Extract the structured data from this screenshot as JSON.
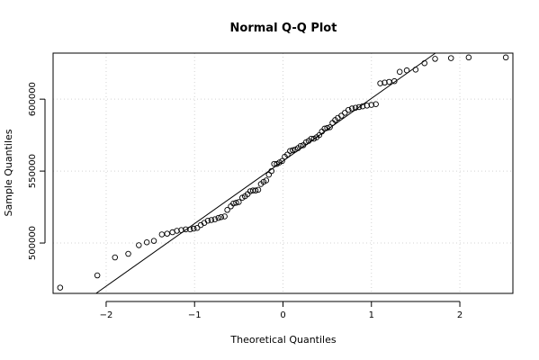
{
  "chart_data": {
    "type": "scatter",
    "title": "Normal Q-Q Plot",
    "xlabel": "Theoretical Quantiles",
    "ylabel": "Sample Quantiles",
    "xlim": [
      -2.6,
      2.6
    ],
    "ylim": [
      465000,
      632000
    ],
    "xticks": [
      -2,
      -1,
      0,
      1,
      2
    ],
    "xtick_labels": [
      "−2",
      "−1",
      "0",
      "1",
      "2"
    ],
    "yticks": [
      500000,
      550000,
      600000
    ],
    "ytick_labels": [
      "500000",
      "550000",
      "600000"
    ],
    "grid": true,
    "reference_line": {
      "slope": 43500,
      "intercept": 557000
    },
    "points": {
      "x": [
        -2.52,
        -2.1,
        -1.9,
        -1.75,
        -1.63,
        -1.54,
        -1.46,
        -1.37,
        -1.31,
        -1.25,
        -1.2,
        -1.15,
        -1.1,
        -1.05,
        -1.01,
        -0.97,
        -0.93,
        -0.89,
        -0.85,
        -0.81,
        -0.77,
        -0.73,
        -0.7,
        -0.66,
        -0.63,
        -0.59,
        -0.56,
        -0.53,
        -0.5,
        -0.46,
        -0.43,
        -0.4,
        -0.37,
        -0.34,
        -0.31,
        -0.28,
        -0.25,
        -0.22,
        -0.19,
        -0.16,
        -0.13,
        -0.1,
        -0.07,
        -0.04,
        -0.01,
        0.02,
        0.05,
        0.08,
        0.11,
        0.14,
        0.17,
        0.2,
        0.23,
        0.26,
        0.29,
        0.32,
        0.35,
        0.38,
        0.41,
        0.44,
        0.47,
        0.5,
        0.53,
        0.56,
        0.59,
        0.62,
        0.66,
        0.7,
        0.74,
        0.78,
        0.82,
        0.86,
        0.9,
        0.95,
        1.0,
        1.05,
        1.1,
        1.15,
        1.2,
        1.26,
        1.32,
        1.4,
        1.5,
        1.6,
        1.72,
        1.9,
        2.1,
        2.52
      ],
      "y": [
        469000,
        477500,
        490000,
        492500,
        498500,
        500500,
        501500,
        506000,
        506500,
        507500,
        508500,
        509000,
        509500,
        509500,
        510000,
        510500,
        512500,
        514000,
        515500,
        516000,
        516500,
        517500,
        518000,
        518500,
        523000,
        525500,
        527500,
        528000,
        528500,
        531500,
        532500,
        534000,
        536000,
        536500,
        536500,
        537000,
        541000,
        542500,
        543500,
        547500,
        550000,
        555000,
        555000,
        556000,
        557000,
        560000,
        561500,
        564000,
        564500,
        565000,
        566000,
        567500,
        568000,
        570000,
        571000,
        572500,
        572500,
        573500,
        575000,
        577500,
        579500,
        580000,
        580500,
        583500,
        585500,
        587000,
        588500,
        590500,
        592500,
        593500,
        594000,
        594500,
        595000,
        595500,
        596000,
        596500,
        611000,
        611500,
        612000,
        612500,
        619000,
        620000,
        620500,
        625000,
        628000,
        628500,
        629000,
        629000
      ]
    }
  }
}
